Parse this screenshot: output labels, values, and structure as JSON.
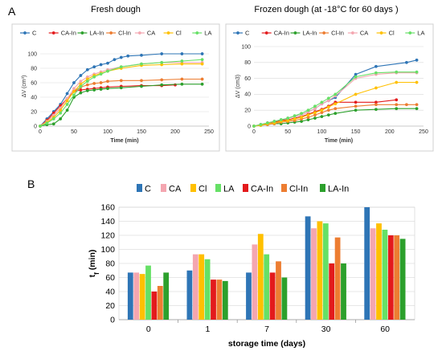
{
  "panel_labels": {
    "a": "A",
    "b": "B"
  },
  "chart_data": [
    {
      "type": "line",
      "title": "Fresh dough",
      "xlabel": "Time (min)",
      "ylabel": "ΔV (cm³)",
      "xlim": [
        0,
        250
      ],
      "ylim": [
        0,
        110
      ],
      "xticks": [
        "0",
        "50",
        "100",
        "150",
        "200",
        "250"
      ],
      "yticks": [
        "0",
        "20",
        "40",
        "60",
        "80",
        "100"
      ],
      "grid": true,
      "legend_position": "top",
      "series": [
        {
          "name": "C",
          "color": "#2E75B6",
          "x": [
            0,
            10,
            20,
            30,
            40,
            50,
            60,
            70,
            80,
            90,
            100,
            110,
            120,
            130,
            150,
            180,
            210,
            240
          ],
          "y": [
            0,
            10,
            20,
            30,
            45,
            60,
            70,
            78,
            82,
            85,
            87,
            92,
            95,
            97,
            98,
            100,
            100,
            100
          ]
        },
        {
          "name": "CA-In",
          "color": "#E31A1C",
          "x": [
            0,
            10,
            20,
            30,
            40,
            50,
            60,
            70,
            80,
            90,
            100,
            120,
            150,
            180,
            200
          ],
          "y": [
            0,
            8,
            18,
            28,
            38,
            48,
            50,
            51,
            52,
            53,
            54,
            55,
            56,
            56,
            57
          ]
        },
        {
          "name": "LA-In",
          "color": "#2CA02C",
          "x": [
            0,
            10,
            20,
            30,
            40,
            50,
            60,
            70,
            80,
            90,
            100,
            120,
            150,
            180,
            210,
            240
          ],
          "y": [
            0,
            2,
            3,
            10,
            22,
            40,
            46,
            49,
            50,
            51,
            52,
            53,
            55,
            57,
            58,
            58
          ]
        },
        {
          "name": "Cl-In",
          "color": "#ED7D31",
          "x": [
            0,
            10,
            20,
            30,
            40,
            50,
            60,
            70,
            80,
            90,
            100,
            120,
            150,
            180,
            210,
            240
          ],
          "y": [
            0,
            7,
            15,
            25,
            38,
            48,
            54,
            57,
            59,
            60,
            62,
            63,
            63,
            64,
            65,
            65
          ]
        },
        {
          "name": "CA",
          "color": "#F4A6B0",
          "x": [
            0,
            10,
            20,
            30,
            40,
            50,
            60,
            70,
            80,
            90,
            100,
            120,
            150,
            180,
            210,
            240
          ],
          "y": [
            0,
            6,
            15,
            25,
            38,
            52,
            62,
            68,
            72,
            75,
            78,
            82,
            86,
            88,
            88,
            88
          ]
        },
        {
          "name": "Cl",
          "color": "#FFC000",
          "x": [
            0,
            10,
            20,
            30,
            40,
            50,
            60,
            70,
            80,
            90,
            100,
            120,
            150,
            180,
            210,
            240
          ],
          "y": [
            0,
            5,
            12,
            22,
            35,
            48,
            58,
            65,
            70,
            73,
            76,
            80,
            84,
            85,
            86,
            86
          ]
        },
        {
          "name": "LA",
          "color": "#66E066",
          "x": [
            0,
            10,
            20,
            30,
            40,
            50,
            60,
            70,
            80,
            90,
            100,
            120,
            150,
            180,
            210,
            240
          ],
          "y": [
            0,
            4,
            10,
            18,
            30,
            43,
            55,
            62,
            68,
            72,
            76,
            82,
            86,
            88,
            90,
            92
          ]
        }
      ]
    },
    {
      "type": "line",
      "title": "Frozen dough (at -18°C for 60 days )",
      "xlabel": "Time (min)",
      "ylabel": "ΔV (cm3)",
      "xlim": [
        0,
        250
      ],
      "ylim": [
        0,
        100
      ],
      "xticks": [
        "0",
        "50",
        "100",
        "150",
        "200",
        "250"
      ],
      "yticks": [
        "0",
        "20",
        "40",
        "60",
        "80",
        "100"
      ],
      "grid": true,
      "legend_position": "top",
      "series": [
        {
          "name": "C",
          "color": "#2E75B6",
          "x": [
            0,
            10,
            20,
            30,
            40,
            50,
            60,
            70,
            80,
            90,
            100,
            110,
            120,
            150,
            180,
            225,
            240
          ],
          "y": [
            0,
            2,
            4,
            6,
            8,
            10,
            12,
            14,
            18,
            22,
            28,
            32,
            36,
            65,
            75,
            80,
            83
          ]
        },
        {
          "name": "CA-In",
          "color": "#E31A1C",
          "x": [
            0,
            10,
            20,
            30,
            40,
            50,
            60,
            70,
            80,
            90,
            100,
            110,
            120,
            150,
            180,
            210
          ],
          "y": [
            0,
            2,
            4,
            5,
            7,
            8,
            10,
            12,
            15,
            18,
            21,
            25,
            30,
            30,
            30,
            33
          ]
        },
        {
          "name": "LA-In",
          "color": "#2CA02C",
          "x": [
            0,
            10,
            20,
            30,
            40,
            50,
            60,
            70,
            80,
            90,
            100,
            110,
            120,
            150,
            180,
            210,
            240
          ],
          "y": [
            0,
            1,
            2,
            3,
            3,
            4,
            5,
            6,
            8,
            10,
            12,
            14,
            16,
            20,
            21,
            22,
            22
          ]
        },
        {
          "name": "Cl-In",
          "color": "#ED7D31",
          "x": [
            0,
            10,
            20,
            30,
            40,
            50,
            60,
            70,
            80,
            90,
            100,
            110,
            120,
            150,
            180,
            210,
            225,
            240
          ],
          "y": [
            0,
            1,
            2,
            3,
            5,
            6,
            7,
            9,
            11,
            14,
            17,
            20,
            22,
            25,
            27,
            27,
            27,
            27
          ]
        },
        {
          "name": "CA",
          "color": "#F4A6B0",
          "x": [
            0,
            10,
            20,
            30,
            40,
            50,
            60,
            70,
            80,
            90,
            100,
            110,
            120,
            150,
            180,
            210,
            240
          ],
          "y": [
            0,
            2,
            4,
            6,
            8,
            10,
            12,
            14,
            18,
            22,
            28,
            32,
            38,
            60,
            65,
            67,
            67
          ]
        },
        {
          "name": "Cl",
          "color": "#FFC000",
          "x": [
            0,
            10,
            20,
            30,
            40,
            50,
            60,
            70,
            80,
            90,
            100,
            110,
            120,
            150,
            180,
            210,
            240
          ],
          "y": [
            0,
            1,
            3,
            4,
            6,
            7,
            9,
            11,
            14,
            17,
            20,
            24,
            28,
            40,
            48,
            55,
            55
          ]
        },
        {
          "name": "LA",
          "color": "#66E066",
          "x": [
            0,
            10,
            20,
            30,
            40,
            50,
            60,
            70,
            80,
            90,
            100,
            110,
            120,
            150,
            180,
            210,
            240
          ],
          "y": [
            0,
            2,
            4,
            6,
            8,
            10,
            13,
            16,
            20,
            25,
            30,
            35,
            40,
            62,
            67,
            68,
            68
          ]
        }
      ]
    },
    {
      "type": "bar",
      "xlabel": "storage time (days)",
      "ylabel": "tf (min)",
      "ylabel_main": "t",
      "ylabel_sub": "f",
      "ylabel_unit": " (min)",
      "categories": [
        "0",
        "1",
        "7",
        "30",
        "60"
      ],
      "ylim": [
        0,
        160
      ],
      "yticks": [
        "0",
        "20",
        "40",
        "60",
        "80",
        "100",
        "120",
        "140",
        "160"
      ],
      "grid": true,
      "legend_position": "top",
      "series": [
        {
          "name": "C",
          "color": "#2E75B6",
          "values": [
            67,
            70,
            67,
            147,
            160
          ]
        },
        {
          "name": "CA",
          "color": "#F4A6B0",
          "values": [
            67,
            93,
            107,
            130,
            130
          ]
        },
        {
          "name": "Cl",
          "color": "#FFC000",
          "values": [
            65,
            93,
            122,
            140,
            137
          ]
        },
        {
          "name": "LA",
          "color": "#66E066",
          "values": [
            77,
            86,
            93,
            137,
            128
          ]
        },
        {
          "name": "CA-In",
          "color": "#E31A1C",
          "values": [
            40,
            57,
            67,
            80,
            120
          ]
        },
        {
          "name": "Cl-In",
          "color": "#ED7D31",
          "values": [
            48,
            57,
            83,
            117,
            120
          ]
        },
        {
          "name": "LA-In",
          "color": "#2CA02C",
          "values": [
            67,
            55,
            60,
            80,
            115
          ]
        }
      ]
    }
  ]
}
